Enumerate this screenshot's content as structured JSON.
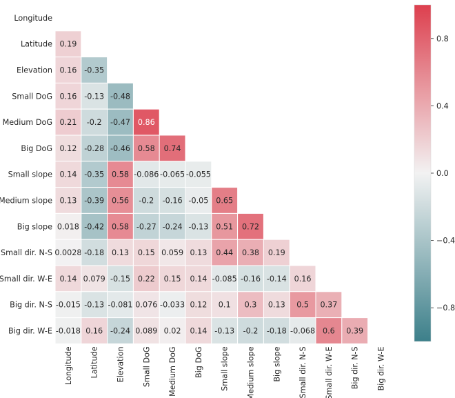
{
  "chart_data": {
    "type": "heatmap",
    "variables": [
      "Longitude",
      "Latitude",
      "Elevation",
      "Small DoG",
      "Medium DoG",
      "Big DoG",
      "Small slope",
      "Medium slope",
      "Big slope",
      "Small dir. N-S",
      "Small dir. W-E",
      "Big dir. N-S",
      "Big dir. W-E"
    ],
    "mask": "upper-triangle-and-diagonal",
    "rows": [
      {
        "label": "Longitude",
        "values": []
      },
      {
        "label": "Latitude",
        "values": [
          0.19
        ]
      },
      {
        "label": "Elevation",
        "values": [
          0.16,
          -0.35
        ]
      },
      {
        "label": "Small DoG",
        "values": [
          0.16,
          -0.13,
          -0.48
        ]
      },
      {
        "label": "Medium DoG",
        "values": [
          0.21,
          -0.2,
          -0.47,
          0.86
        ]
      },
      {
        "label": "Big DoG",
        "values": [
          0.12,
          -0.28,
          -0.46,
          0.58,
          0.74
        ]
      },
      {
        "label": "Small slope",
        "values": [
          0.14,
          -0.35,
          0.58,
          -0.086,
          -0.065,
          -0.055
        ]
      },
      {
        "label": "Medium slope",
        "values": [
          0.13,
          -0.39,
          0.56,
          -0.2,
          -0.16,
          -0.05,
          0.65
        ]
      },
      {
        "label": "Big slope",
        "values": [
          0.018,
          -0.42,
          0.58,
          -0.27,
          -0.24,
          -0.13,
          0.51,
          0.72
        ]
      },
      {
        "label": "Small dir. N-S",
        "values": [
          0.0028,
          -0.18,
          0.13,
          0.15,
          0.059,
          0.13,
          0.44,
          0.38,
          0.19
        ]
      },
      {
        "label": "Small dir. W-E",
        "values": [
          0.14,
          0.079,
          -0.15,
          0.22,
          0.15,
          0.14,
          -0.085,
          -0.16,
          -0.14,
          0.16
        ]
      },
      {
        "label": "Big dir. N-S",
        "values": [
          -0.015,
          -0.13,
          -0.081,
          0.076,
          -0.033,
          0.12,
          0.1,
          0.3,
          0.13,
          0.5,
          0.37
        ]
      },
      {
        "label": "Big dir. W-E",
        "values": [
          -0.018,
          0.16,
          -0.24,
          0.089,
          0.02,
          0.14,
          -0.13,
          -0.2,
          -0.18,
          -0.068,
          0.6,
          0.39
        ]
      }
    ],
    "colorbar": {
      "vmin": -1,
      "vmax": 1,
      "ticks": [
        {
          "value": 0.8,
          "label": "0.8"
        },
        {
          "value": 0.4,
          "label": "0.4"
        },
        {
          "value": 0.0,
          "label": "0.0"
        },
        {
          "value": -0.4,
          "label": "−0.4"
        },
        {
          "value": -0.8,
          "label": "−0.8"
        }
      ],
      "colors": {
        "negative": "#3c7f8a",
        "center": "#f2f2f2",
        "positive": "#dd3f4e"
      }
    }
  }
}
